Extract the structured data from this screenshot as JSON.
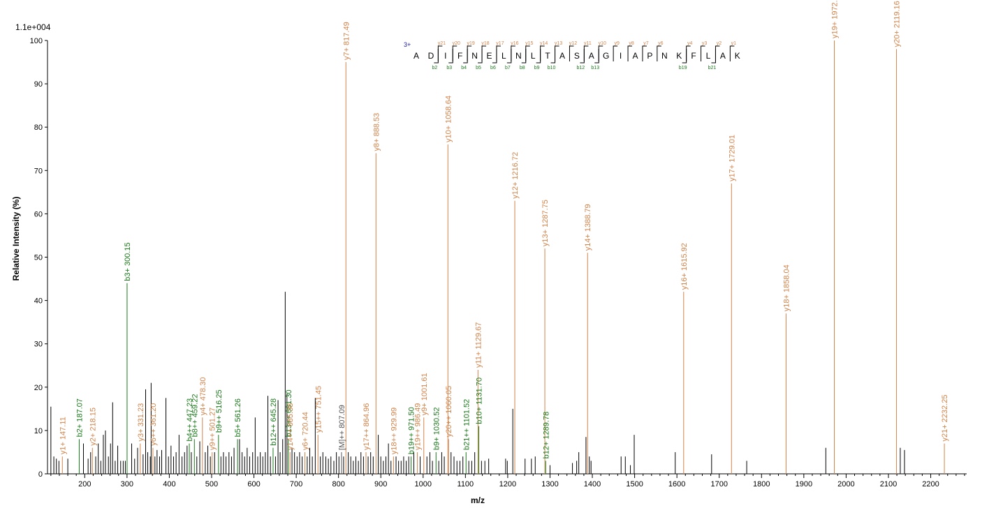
{
  "chart_data": {
    "type": "bar",
    "scale_label": "1.1e+004",
    "xlabel": "m/z",
    "ylabel": "Relative   Intensity (%)",
    "xlim": [
      112,
      2285
    ],
    "ylim": [
      0,
      100
    ],
    "xticks": [
      200,
      300,
      400,
      500,
      600,
      700,
      800,
      900,
      1000,
      1100,
      1200,
      1300,
      1400,
      1500,
      1600,
      1700,
      1800,
      1900,
      2000,
      2100,
      2200
    ],
    "yticks": [
      0,
      10,
      20,
      30,
      40,
      50,
      60,
      70,
      80,
      90,
      100
    ],
    "colors": {
      "b_ion": "#1a7a1a",
      "y_ion": "#d2834a",
      "precursor": "#555555",
      "unlabeled": "#000000"
    },
    "peptide": {
      "charge": "3+",
      "sequence": [
        "A",
        "D",
        "I",
        "F",
        "N",
        "E",
        "L",
        "N",
        "L",
        "T",
        "A",
        "S",
        "A",
        "G",
        "I",
        "A",
        "P",
        "N",
        "K",
        "F",
        "L",
        "A",
        "K"
      ],
      "y_labels": [
        {
          "gap": 2,
          "label": "y21"
        },
        {
          "gap": 3,
          "label": "y20"
        },
        {
          "gap": 4,
          "label": "y19"
        },
        {
          "gap": 5,
          "label": "y18"
        },
        {
          "gap": 6,
          "label": "y17"
        },
        {
          "gap": 7,
          "label": "y16"
        },
        {
          "gap": 8,
          "label": "y15"
        },
        {
          "gap": 9,
          "label": "y14"
        },
        {
          "gap": 10,
          "label": "y13"
        },
        {
          "gap": 11,
          "label": "y12"
        },
        {
          "gap": 12,
          "label": "y11"
        },
        {
          "gap": 13,
          "label": "y10"
        },
        {
          "gap": 14,
          "label": "y9"
        },
        {
          "gap": 15,
          "label": "y8"
        },
        {
          "gap": 16,
          "label": "y7"
        },
        {
          "gap": 17,
          "label": "y6"
        },
        {
          "gap": 19,
          "label": "y4"
        },
        {
          "gap": 20,
          "label": "y3"
        },
        {
          "gap": 21,
          "label": "y2"
        },
        {
          "gap": 22,
          "label": "y1"
        }
      ],
      "b_labels": [
        {
          "gap": 2,
          "label": "b2"
        },
        {
          "gap": 3,
          "label": "b3"
        },
        {
          "gap": 4,
          "label": "b4"
        },
        {
          "gap": 5,
          "label": "b5"
        },
        {
          "gap": 6,
          "label": "b6"
        },
        {
          "gap": 7,
          "label": "b7"
        },
        {
          "gap": 8,
          "label": "b8"
        },
        {
          "gap": 9,
          "label": "b9"
        },
        {
          "gap": 10,
          "label": "b10"
        },
        {
          "gap": 12,
          "label": "b12"
        },
        {
          "gap": 13,
          "label": "b13"
        },
        {
          "gap": 19,
          "label": "b19"
        },
        {
          "gap": 21,
          "label": "b21"
        }
      ]
    },
    "labeled_peaks": [
      {
        "mz": 147.11,
        "intensity": 4,
        "label": "y1+ 147.11",
        "ion": "y"
      },
      {
        "mz": 187.07,
        "intensity": 8,
        "label": "b2+ 187.07",
        "ion": "b"
      },
      {
        "mz": 218.15,
        "intensity": 6,
        "label": "y2+ 218.15",
        "ion": "y"
      },
      {
        "mz": 300.15,
        "intensity": 44,
        "label": "b3+ 300.15",
        "ion": "b"
      },
      {
        "mz": 331.23,
        "intensity": 7,
        "label": "y3+ 331.23",
        "ion": "y"
      },
      {
        "mz": 361.2,
        "intensity": 6,
        "label": "y6++ 361.20",
        "ion": "y"
      },
      {
        "mz": 447.23,
        "intensity": 7,
        "label": "b4++ 447.23",
        "ion": "b"
      },
      {
        "mz": 459.22,
        "intensity": 8,
        "label": "b8++ 459.22",
        "ion": "b"
      },
      {
        "mz": 478.3,
        "intensity": 13,
        "label": "y4+ 478.30",
        "ion": "y"
      },
      {
        "mz": 501.27,
        "intensity": 5,
        "label": "y9++ 501.27",
        "ion": "y"
      },
      {
        "mz": 516.25,
        "intensity": 9,
        "label": "b9++ 516.25",
        "ion": "b"
      },
      {
        "mz": 561.26,
        "intensity": 8,
        "label": "b5+ 561.26",
        "ion": "b"
      },
      {
        "mz": 645.28,
        "intensity": 6,
        "label": "b12++ 645.28",
        "ion": "b"
      },
      {
        "mz": 681.3,
        "intensity": 8,
        "label": "b13++ 681.30",
        "ion": "b"
      },
      {
        "mz": 685.38,
        "intensity": 5,
        "label": "y14++ 685.38",
        "ion": "y"
      },
      {
        "mz": 720.44,
        "intensity": 5,
        "label": "y6+ 720.44",
        "ion": "y"
      },
      {
        "mz": 751.45,
        "intensity": 9,
        "label": "y15++ 751.45",
        "ion": "y"
      },
      {
        "mz": 807.09,
        "intensity": 5,
        "label": "[M]++ 807.09",
        "ion": "p"
      },
      {
        "mz": 817.49,
        "intensity": 95,
        "label": "y7+ 817.49",
        "ion": "y"
      },
      {
        "mz": 864.96,
        "intensity": 5,
        "label": "y17++ 864.96",
        "ion": "y"
      },
      {
        "mz": 888.53,
        "intensity": 74,
        "label": "y8+ 888.53",
        "ion": "y"
      },
      {
        "mz": 929.99,
        "intensity": 4,
        "label": "y18++ 929.99",
        "ion": "y"
      },
      {
        "mz": 971.5,
        "intensity": 4,
        "label": "b19++ 971.50",
        "ion": "b"
      },
      {
        "mz": 986.49,
        "intensity": 5,
        "label": "y19++ 986.49",
        "ion": "y"
      },
      {
        "mz": 1001.61,
        "intensity": 13,
        "label": "y9+ 1001.61",
        "ion": "y"
      },
      {
        "mz": 1030.52,
        "intensity": 5,
        "label": "b9+ 1030.52",
        "ion": "b"
      },
      {
        "mz": 1058.64,
        "intensity": 76,
        "label": "y10+ 1058.64",
        "ion": "y"
      },
      {
        "mz": 1060.05,
        "intensity": 8,
        "label": "y20++ 1060.05",
        "ion": "y"
      },
      {
        "mz": 1101.52,
        "intensity": 5,
        "label": "b21++ 1101.52",
        "ion": "b"
      },
      {
        "mz": 1129.67,
        "intensity": 24,
        "label": "y11+ 1129.67",
        "ion": "y"
      },
      {
        "mz": 1131.7,
        "intensity": 11,
        "label": "b10+ 1131.70",
        "ion": "b"
      },
      {
        "mz": 1216.72,
        "intensity": 63,
        "label": "y12+ 1216.72",
        "ion": "y"
      },
      {
        "mz": 1287.75,
        "intensity": 52,
        "label": "y13+ 1287.75",
        "ion": "y"
      },
      {
        "mz": 1289.78,
        "intensity": 3,
        "label": "b12+ 1289.78",
        "ion": "b"
      },
      {
        "mz": 1388.79,
        "intensity": 51,
        "label": "y14+ 1388.79",
        "ion": "y"
      },
      {
        "mz": 1615.92,
        "intensity": 42,
        "label": "y16+ 1615.92",
        "ion": "y"
      },
      {
        "mz": 1729.01,
        "intensity": 67,
        "label": "y17+ 1729.01",
        "ion": "y"
      },
      {
        "mz": 1858.04,
        "intensity": 37,
        "label": "y18+ 1858.04",
        "ion": "y"
      },
      {
        "mz": 1972.09,
        "intensity": 100,
        "label": "y19+ 1972.09",
        "ion": "y"
      },
      {
        "mz": 2119.16,
        "intensity": 98,
        "label": "y20+ 2119.16",
        "ion": "y"
      },
      {
        "mz": 2232.25,
        "intensity": 7,
        "label": "y21+ 2232.25",
        "ion": "y"
      }
    ],
    "unlabeled_peaks": [
      {
        "mz": 120,
        "intensity": 15.5
      },
      {
        "mz": 127,
        "intensity": 4
      },
      {
        "mz": 133,
        "intensity": 3.5
      },
      {
        "mz": 139,
        "intensity": 3
      },
      {
        "mz": 160,
        "intensity": 3.5
      },
      {
        "mz": 197,
        "intensity": 7
      },
      {
        "mz": 208,
        "intensity": 3.5
      },
      {
        "mz": 214,
        "intensity": 5
      },
      {
        "mz": 226,
        "intensity": 4
      },
      {
        "mz": 232,
        "intensity": 7
      },
      {
        "mz": 238,
        "intensity": 3
      },
      {
        "mz": 244,
        "intensity": 9
      },
      {
        "mz": 249,
        "intensity": 10
      },
      {
        "mz": 256,
        "intensity": 4
      },
      {
        "mz": 261,
        "intensity": 7
      },
      {
        "mz": 266,
        "intensity": 16.5
      },
      {
        "mz": 272,
        "intensity": 3
      },
      {
        "mz": 278,
        "intensity": 6.5
      },
      {
        "mz": 285,
        "intensity": 3
      },
      {
        "mz": 291,
        "intensity": 3
      },
      {
        "mz": 296,
        "intensity": 3
      },
      {
        "mz": 311,
        "intensity": 7
      },
      {
        "mz": 318,
        "intensity": 3.5
      },
      {
        "mz": 325,
        "intensity": 6
      },
      {
        "mz": 338,
        "intensity": 4.5
      },
      {
        "mz": 344,
        "intensity": 19.5
      },
      {
        "mz": 349,
        "intensity": 5
      },
      {
        "mz": 355,
        "intensity": 4
      },
      {
        "mz": 357,
        "intensity": 21
      },
      {
        "mz": 366,
        "intensity": 4
      },
      {
        "mz": 371,
        "intensity": 5.5
      },
      {
        "mz": 377,
        "intensity": 4
      },
      {
        "mz": 382,
        "intensity": 5.5
      },
      {
        "mz": 392,
        "intensity": 17.5
      },
      {
        "mz": 398,
        "intensity": 4
      },
      {
        "mz": 404,
        "intensity": 6.5
      },
      {
        "mz": 410,
        "intensity": 4
      },
      {
        "mz": 416,
        "intensity": 5
      },
      {
        "mz": 423,
        "intensity": 9
      },
      {
        "mz": 430,
        "intensity": 4
      },
      {
        "mz": 436,
        "intensity": 5
      },
      {
        "mz": 442,
        "intensity": 6.5
      },
      {
        "mz": 452,
        "intensity": 5
      },
      {
        "mz": 465,
        "intensity": 4
      },
      {
        "mz": 472,
        "intensity": 7.5
      },
      {
        "mz": 485,
        "intensity": 5
      },
      {
        "mz": 491,
        "intensity": 6.5
      },
      {
        "mz": 497,
        "intensity": 4
      },
      {
        "mz": 507,
        "intensity": 5
      },
      {
        "mz": 522,
        "intensity": 4
      },
      {
        "mz": 528,
        "intensity": 5
      },
      {
        "mz": 534,
        "intensity": 4
      },
      {
        "mz": 541,
        "intensity": 5
      },
      {
        "mz": 547,
        "intensity": 4
      },
      {
        "mz": 553,
        "intensity": 6
      },
      {
        "mz": 566,
        "intensity": 8
      },
      {
        "mz": 572,
        "intensity": 5
      },
      {
        "mz": 578,
        "intensity": 4
      },
      {
        "mz": 584,
        "intensity": 6
      },
      {
        "mz": 590,
        "intensity": 4
      },
      {
        "mz": 597,
        "intensity": 5
      },
      {
        "mz": 603,
        "intensity": 13
      },
      {
        "mz": 609,
        "intensity": 4
      },
      {
        "mz": 615,
        "intensity": 5
      },
      {
        "mz": 621,
        "intensity": 4
      },
      {
        "mz": 627,
        "intensity": 5
      },
      {
        "mz": 633,
        "intensity": 18
      },
      {
        "mz": 639,
        "intensity": 4
      },
      {
        "mz": 651,
        "intensity": 4
      },
      {
        "mz": 657,
        "intensity": 17
      },
      {
        "mz": 662,
        "intensity": 5
      },
      {
        "mz": 668,
        "intensity": 8
      },
      {
        "mz": 674,
        "intensity": 42
      },
      {
        "mz": 678,
        "intensity": 18.5
      },
      {
        "mz": 690,
        "intensity": 6
      },
      {
        "mz": 696,
        "intensity": 5
      },
      {
        "mz": 702,
        "intensity": 4
      },
      {
        "mz": 708,
        "intensity": 5
      },
      {
        "mz": 714,
        "intensity": 4
      },
      {
        "mz": 726,
        "intensity": 4
      },
      {
        "mz": 732,
        "intensity": 6
      },
      {
        "mz": 738,
        "intensity": 4
      },
      {
        "mz": 745,
        "intensity": 17.5
      },
      {
        "mz": 757,
        "intensity": 4
      },
      {
        "mz": 763,
        "intensity": 5
      },
      {
        "mz": 770,
        "intensity": 4
      },
      {
        "mz": 776,
        "intensity": 3.5
      },
      {
        "mz": 782,
        "intensity": 4
      },
      {
        "mz": 789,
        "intensity": 3
      },
      {
        "mz": 795,
        "intensity": 5
      },
      {
        "mz": 801,
        "intensity": 4
      },
      {
        "mz": 812,
        "intensity": 4
      },
      {
        "mz": 823,
        "intensity": 5
      },
      {
        "mz": 829,
        "intensity": 4
      },
      {
        "mz": 835,
        "intensity": 3
      },
      {
        "mz": 841,
        "intensity": 4
      },
      {
        "mz": 847,
        "intensity": 3
      },
      {
        "mz": 853,
        "intensity": 5
      },
      {
        "mz": 859,
        "intensity": 4
      },
      {
        "mz": 870,
        "intensity": 4
      },
      {
        "mz": 876,
        "intensity": 5
      },
      {
        "mz": 882,
        "intensity": 4
      },
      {
        "mz": 894,
        "intensity": 9
      },
      {
        "mz": 900,
        "intensity": 4
      },
      {
        "mz": 906,
        "intensity": 3
      },
      {
        "mz": 912,
        "intensity": 4
      },
      {
        "mz": 918,
        "intensity": 7
      },
      {
        "mz": 924,
        "intensity": 3
      },
      {
        "mz": 936,
        "intensity": 4
      },
      {
        "mz": 942,
        "intensity": 3
      },
      {
        "mz": 948,
        "intensity": 3
      },
      {
        "mz": 954,
        "intensity": 4
      },
      {
        "mz": 960,
        "intensity": 3
      },
      {
        "mz": 966,
        "intensity": 4
      },
      {
        "mz": 978,
        "intensity": 5
      },
      {
        "mz": 993,
        "intensity": 4
      },
      {
        "mz": 1009,
        "intensity": 4
      },
      {
        "mz": 1016,
        "intensity": 5
      },
      {
        "mz": 1022,
        "intensity": 3
      },
      {
        "mz": 1037,
        "intensity": 3
      },
      {
        "mz": 1044,
        "intensity": 5
      },
      {
        "mz": 1050,
        "intensity": 4
      },
      {
        "mz": 1066,
        "intensity": 5
      },
      {
        "mz": 1073,
        "intensity": 4
      },
      {
        "mz": 1080,
        "intensity": 3
      },
      {
        "mz": 1087,
        "intensity": 3
      },
      {
        "mz": 1094,
        "intensity": 4
      },
      {
        "mz": 1108,
        "intensity": 3
      },
      {
        "mz": 1115,
        "intensity": 3
      },
      {
        "mz": 1122,
        "intensity": 5
      },
      {
        "mz": 1138,
        "intensity": 3
      },
      {
        "mz": 1146,
        "intensity": 3
      },
      {
        "mz": 1155,
        "intensity": 3.5
      },
      {
        "mz": 1195,
        "intensity": 3.5
      },
      {
        "mz": 1199,
        "intensity": 3
      },
      {
        "mz": 1212,
        "intensity": 15
      },
      {
        "mz": 1241,
        "intensity": 3.5
      },
      {
        "mz": 1256,
        "intensity": 3.5
      },
      {
        "mz": 1265,
        "intensity": 4
      },
      {
        "mz": 1300,
        "intensity": 2
      },
      {
        "mz": 1353,
        "intensity": 2.5
      },
      {
        "mz": 1363,
        "intensity": 3
      },
      {
        "mz": 1368,
        "intensity": 5
      },
      {
        "mz": 1385,
        "intensity": 8.5
      },
      {
        "mz": 1393,
        "intensity": 4
      },
      {
        "mz": 1397,
        "intensity": 3
      },
      {
        "mz": 1468,
        "intensity": 4
      },
      {
        "mz": 1478,
        "intensity": 4
      },
      {
        "mz": 1490,
        "intensity": 2
      },
      {
        "mz": 1499,
        "intensity": 9
      },
      {
        "mz": 1596,
        "intensity": 5
      },
      {
        "mz": 1682,
        "intensity": 4.5
      },
      {
        "mz": 1765,
        "intensity": 3
      },
      {
        "mz": 1952,
        "intensity": 6
      },
      {
        "mz": 2128,
        "intensity": 6
      },
      {
        "mz": 2138,
        "intensity": 5.5
      }
    ]
  }
}
